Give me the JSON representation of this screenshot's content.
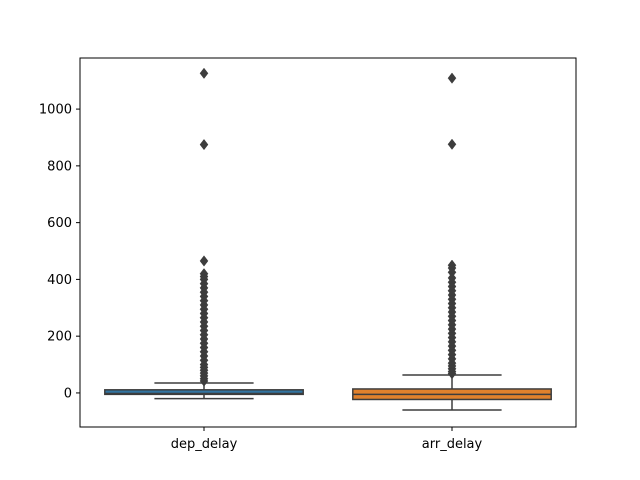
{
  "chart_data": {
    "type": "boxplot",
    "title": "",
    "xlabel": "",
    "ylabel": "",
    "categories": [
      "dep_delay",
      "arr_delay"
    ],
    "ylim": [
      -120,
      1180
    ],
    "yticks": [
      0,
      200,
      400,
      600,
      800,
      1000
    ],
    "grid": false,
    "boxes": [
      {
        "name": "dep_delay",
        "color": "#3274a1",
        "whisker_low": -20,
        "q1": -5,
        "median": -2,
        "q3": 11,
        "whisker_high": 35,
        "outliers": [
          1126,
          875,
          465,
          420,
          410,
          400,
          385,
          370,
          355,
          340,
          325,
          310,
          295,
          280,
          265,
          250,
          235,
          220,
          205,
          190,
          175,
          160,
          145,
          130,
          115,
          100,
          90,
          80,
          70,
          60,
          50,
          42
        ]
      },
      {
        "name": "arr_delay",
        "color": "#e1812c",
        "whisker_low": -60,
        "q1": -23,
        "median": -5,
        "q3": 14,
        "whisker_high": 63,
        "outliers": [
          1109,
          876,
          450,
          440,
          425,
          405,
          390,
          375,
          360,
          345,
          330,
          315,
          300,
          285,
          270,
          255,
          240,
          225,
          210,
          195,
          180,
          165,
          150,
          135,
          120,
          105,
          95,
          85,
          75,
          68
        ]
      }
    ]
  }
}
